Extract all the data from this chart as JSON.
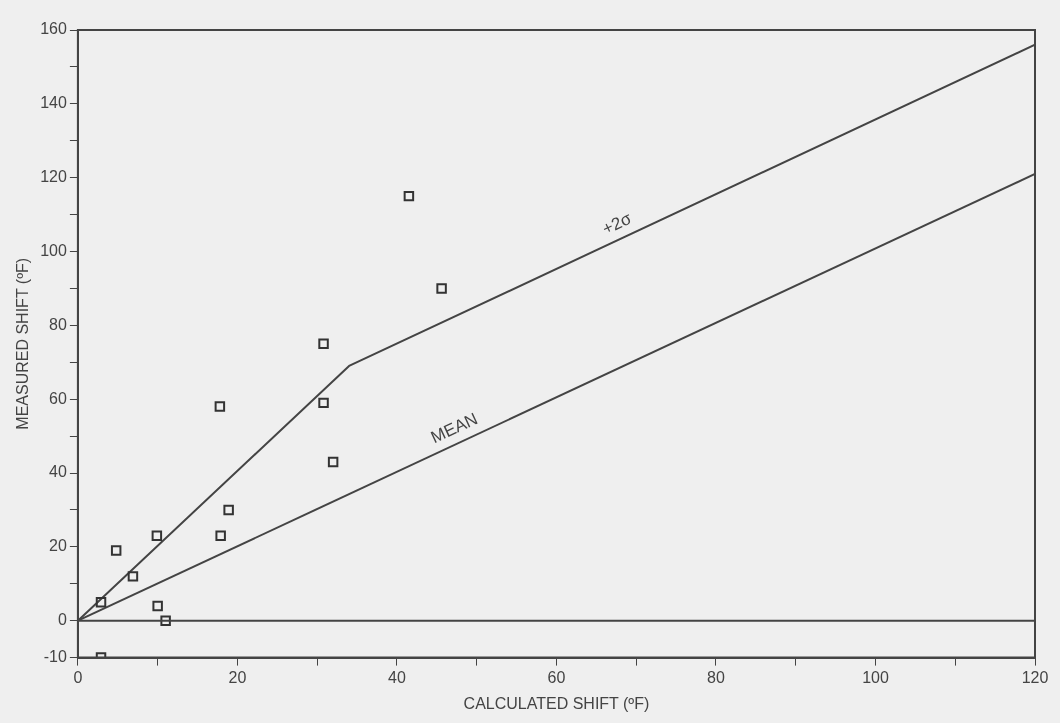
{
  "chart_data": {
    "type": "scatter",
    "xlabel": "CALCULATED SHIFT (ºF)",
    "ylabel": "MEASURED SHIFT (ºF)",
    "xlim": [
      0,
      120
    ],
    "ylim": [
      -10,
      160
    ],
    "xticks": [
      0,
      {
        "value": 10,
        "label": null
      },
      20,
      {
        "value": 30,
        "label": null
      },
      40,
      {
        "value": 50,
        "label": null
      },
      60,
      {
        "value": 70,
        "label": null
      },
      80,
      {
        "value": 90,
        "label": null
      },
      100,
      {
        "value": 110,
        "label": null
      },
      120
    ],
    "yticks": [
      -10,
      0,
      {
        "value": 10,
        "label": null
      },
      20,
      {
        "value": 30,
        "label": null
      },
      40,
      {
        "value": 50,
        "label": null
      },
      60,
      {
        "value": 70,
        "label": null
      },
      80,
      {
        "value": 90,
        "label": null
      },
      100,
      {
        "value": 110,
        "label": null
      },
      120,
      {
        "value": 130,
        "label": null
      },
      140,
      {
        "value": 150,
        "label": null
      },
      160
    ],
    "grid": false,
    "legend": false,
    "marker": "square",
    "ref_lines": [
      {
        "axis": "y",
        "value": 0,
        "color": "#444444",
        "line_style": "solid"
      }
    ],
    "series": [
      {
        "color": "#333333",
        "x": [
          41.5,
          45.6,
          30.8,
          17.8,
          30.8,
          32.0,
          18.9,
          9.9,
          17.9,
          4.8,
          6.9,
          2.9,
          10.0,
          11.0,
          2.9
        ],
        "values": [
          115,
          90,
          75,
          58,
          59,
          43,
          30,
          23,
          23,
          19,
          12,
          5,
          4,
          0,
          -10
        ]
      },
      {
        "type": "line",
        "name": "+2σ",
        "color": "#444444",
        "marker": "none",
        "x": [
          0,
          34,
          120
        ],
        "values": [
          0,
          69,
          156
        ]
      },
      {
        "type": "line",
        "name": "MEAN",
        "color": "#444444",
        "marker": "none",
        "x": [
          0,
          120
        ],
        "values": [
          0,
          121
        ]
      }
    ]
  }
}
